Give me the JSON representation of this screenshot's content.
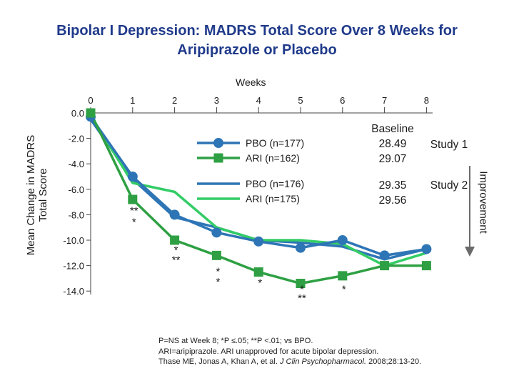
{
  "title": "Bipolar I Depression: MADRS Total Score Over 8 Weeks for Aripiprazole or Placebo",
  "chart_data": {
    "type": "line",
    "title": "Bipolar I Depression: MADRS Total Score Over 8 Weeks for Aripiprazole or Placebo",
    "xlabel": "Weeks",
    "ylabel": "Mean Change in MADRS Total Score",
    "x": [
      0,
      1,
      2,
      3,
      4,
      5,
      6,
      7,
      8
    ],
    "xticks": [
      "0",
      "1",
      "2",
      "3",
      "4",
      "5",
      "6",
      "7",
      "8"
    ],
    "yticks": [
      "0.0",
      "-2.0",
      "-4.0",
      "-6.0",
      "-8.0",
      "-10.0",
      "-12.0",
      "-14.0"
    ],
    "ylim": [
      -14,
      0
    ],
    "right_label": "Improvement",
    "series": [
      {
        "name": "PBO (n=177)",
        "study": "Study 1",
        "marker": "circle",
        "color": "#2e75b6",
        "values": [
          -0.3,
          -5.0,
          -8.0,
          -9.4,
          -10.1,
          -10.6,
          -10.0,
          -11.2,
          -10.7
        ]
      },
      {
        "name": "ARI (n=162)",
        "study": "Study 1",
        "marker": "square",
        "color": "#2ea043",
        "values": [
          0.0,
          -6.8,
          -10.0,
          -11.2,
          -12.5,
          -13.4,
          -12.8,
          -12.0,
          -12.0
        ]
      },
      {
        "name": "PBO (n=176)",
        "study": "Study 2",
        "marker": "none",
        "color": "#2e75b6",
        "values": [
          -0.5,
          -5.2,
          -8.2,
          -9.0,
          -10.0,
          -10.2,
          -10.5,
          -11.5,
          -10.7
        ]
      },
      {
        "name": "ARI (n=175)",
        "study": "Study 2",
        "marker": "none",
        "color": "#33cc66",
        "values": [
          -0.2,
          -5.5,
          -6.2,
          -9.0,
          -10.0,
          -10.0,
          -10.3,
          -12.0,
          -11.0
        ]
      }
    ],
    "annotations": [
      {
        "x": 1,
        "text": "**",
        "y": -7.6
      },
      {
        "x": 1,
        "text": "*",
        "y": -8.5
      },
      {
        "x": 2,
        "text": "*",
        "y": -10.7
      },
      {
        "x": 2,
        "text": "**",
        "y": -11.5
      },
      {
        "x": 3,
        "text": "*",
        "y": -12.4
      },
      {
        "x": 3,
        "text": "*",
        "y": -13.2
      },
      {
        "x": 4,
        "text": "*",
        "y": -13.3
      },
      {
        "x": 5,
        "text": "*",
        "y": -13.8
      },
      {
        "x": 5,
        "text": "**",
        "y": -14.5
      },
      {
        "x": 6,
        "text": "*",
        "y": -13.8
      }
    ]
  },
  "legend": {
    "study1": {
      "pbo": "PBO (n=177)",
      "ari": "ARI (n=162)",
      "label": "Study 1"
    },
    "study2": {
      "pbo": "PBO (n=176)",
      "ari": "ARI (n=175)",
      "label": "Study 2"
    }
  },
  "baseline": {
    "header": "Baseline",
    "study1": {
      "pbo": "28.49",
      "ari": "29.07"
    },
    "study2": {
      "pbo": "29.35",
      "ari": "29.56"
    }
  },
  "footnote": {
    "line1": "P=NS at Week 8; *P ≤.05; **P <.01; vs BPO.",
    "line2": "ARI=aripiprazole. ARI unapproved for acute bipolar depression.",
    "line3_a": "Thase ME, Jonas A, Khan A, et al. ",
    "line3_journal": "J Clin Psychopharmacol.",
    "line3_b": " 2008;28:13-20."
  }
}
